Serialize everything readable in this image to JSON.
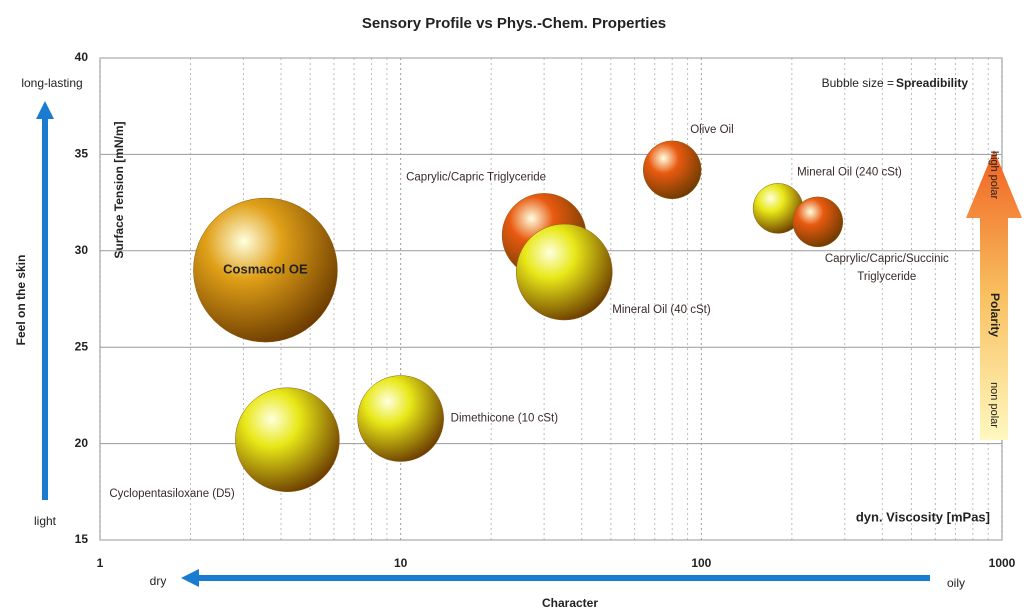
{
  "chart_data": {
    "type": "bubble",
    "title": "Sensory Profile vs Phys.-Chem. Properties",
    "x_label": "dyn. Viscosity [mPas]",
    "y_label": "Surface Tension [mN/m]",
    "size_note": "Bubble size = ",
    "size_label": "Spreadibility",
    "log_x": true,
    "xlim": [
      1,
      1000
    ],
    "xticks": [
      1,
      10,
      100,
      1000
    ],
    "ylim": [
      15,
      40
    ],
    "yticks": [
      15,
      20,
      25,
      30,
      35,
      40
    ],
    "grid": true,
    "series": [
      {
        "name": "Cosmacol OE",
        "color": "#e0a018",
        "x": 3.55,
        "y": 29,
        "size": 72
      },
      {
        "name": "Cyclopentasiloxane (D5)",
        "color": "#e8e818",
        "x": 4.2,
        "y": 20.2,
        "size": 52
      },
      {
        "name": "Dimethicone (10 cSt)",
        "color": "#e8e818",
        "x": 10,
        "y": 21.3,
        "size": 43
      },
      {
        "name": "Caprylic/Capric Triglyceride",
        "color": "#e85a10",
        "x": 30,
        "y": 30.8,
        "size": 42
      },
      {
        "name": "Mineral Oil (40 cSt)",
        "color": "#e8e818",
        "x": 35,
        "y": 28.9,
        "size": 48
      },
      {
        "name": "Olive Oil",
        "color": "#e85a10",
        "x": 80,
        "y": 34.2,
        "size": 29
      },
      {
        "name": "Mineral Oil (240 cSt)",
        "color": "#e8e818",
        "x": 180,
        "y": 32.2,
        "size": 25
      },
      {
        "name": "Caprylic/Capric/Succinic Triglyceride",
        "color": "#e85a10",
        "x": 244,
        "y": 31.5,
        "size": 25
      }
    ],
    "annotations": {
      "feel": "Feel on the skin",
      "feel_high": "long-lasting",
      "feel_low": "light",
      "character": "Character",
      "character_low": "dry",
      "character_high": "oily",
      "polarity": "Polarity",
      "polarity_high": "high polar",
      "polarity_low": "non polar"
    }
  }
}
